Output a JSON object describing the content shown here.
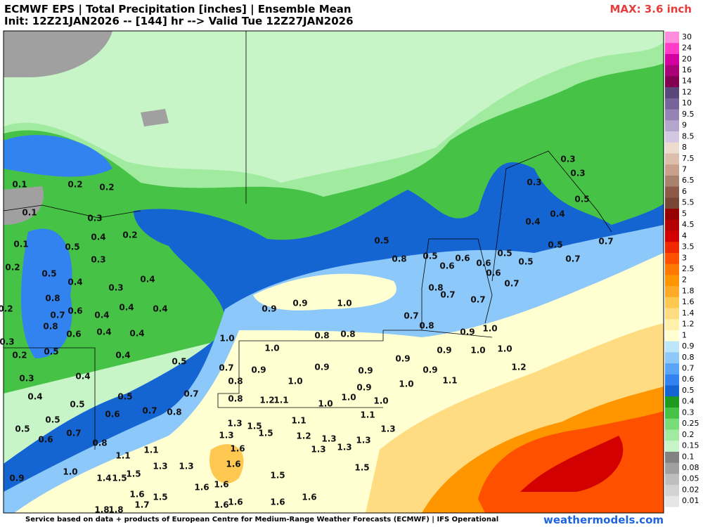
{
  "header": {
    "title": "ECMWF EPS | Total Precipitation [inches] | Ensemble Mean",
    "subtitle": "Init: 12Z21JAN2026 -- [144] hr --> Valid Tue 12Z27JAN2026",
    "max_label": "MAX: 3.6 inch"
  },
  "colorbar": {
    "labels": [
      "0.01",
      "0.02",
      "0.05",
      "0.08",
      "0.1",
      "0.15",
      "0.2",
      "0.25",
      "0.3",
      "0.4",
      "0.5",
      "0.6",
      "0.7",
      "0.8",
      "0.9",
      "1",
      "1.2",
      "1.4",
      "1.6",
      "1.8",
      "2",
      "2.5",
      "3",
      "3.5",
      "4",
      "4.5",
      "5",
      "5.5",
      "6",
      "6.5",
      "7",
      "7.5",
      "8",
      "8.5",
      "9",
      "9.5",
      "10",
      "12",
      "14",
      "16",
      "20",
      "24",
      "30"
    ],
    "colors": [
      "#e6e6e6",
      "#d2d2d2",
      "#bebebe",
      "#a0a0a0",
      "#828282",
      "#c8f5c8",
      "#a0eba0",
      "#78dc78",
      "#46c346",
      "#1e9b1e",
      "#1464d2",
      "#3282f0",
      "#5aa5f5",
      "#8cc8fa",
      "#bee6fa",
      "#ffffd2",
      "#fff0aa",
      "#ffdc82",
      "#ffc850",
      "#ffaa28",
      "#ff9600",
      "#ff7800",
      "#ff5000",
      "#f02800",
      "#d20000",
      "#b40000",
      "#960000",
      "#784634",
      "#8c5a46",
      "#a8826e",
      "#c8a08c",
      "#dcbeaa",
      "#ecdcd0",
      "#d2c8e1",
      "#b4a5cd",
      "#9682b4",
      "#78649b",
      "#5a4678",
      "#820050",
      "#aa0078",
      "#d200a0",
      "#ff3cc8",
      "#ff8cdc"
    ]
  },
  "map": {
    "point_labels": [
      "0.1",
      "0.2",
      "0.2",
      "0.1",
      "0.3",
      "0.1",
      "0.5",
      "0.4",
      "0.2",
      "0.2",
      "0.5",
      "0.3",
      "0.4",
      "0.3",
      "0.4",
      "0.8",
      "0.2",
      "0.7",
      "0.6",
      "0.4",
      "0.4",
      "0.4",
      "0.8",
      "0.6",
      "0.4",
      "0.4",
      "0.3",
      "0.2",
      "0.5",
      "0.4",
      "0.5",
      "0.3",
      "0.4",
      "0.4",
      "0.5",
      "0.5",
      "0.7",
      "0.5",
      "0.6",
      "0.7",
      "0.8",
      "0.5",
      "0.6",
      "0.7",
      "0.8",
      "0.9",
      "1.0",
      "1.1",
      "1.1",
      "1.4",
      "1.5",
      "1.5",
      "1.3",
      "1.3",
      "1.6",
      "1.5",
      "1.7",
      "1.8",
      "1.8",
      "1.6",
      "1.6",
      "1.6",
      "1.6",
      "1.6",
      "1.6",
      "0.5",
      "0.8",
      "0.5",
      "0.6",
      "0.6",
      "0.6",
      "0.5",
      "0.5",
      "0.5",
      "0.7",
      "0.7",
      "0.6",
      "0.7",
      "0.8",
      "0.7",
      "0.7",
      "0.3",
      "0.3",
      "0.3",
      "0.5",
      "0.4",
      "0.4",
      "0.9",
      "0.9",
      "1.0",
      "0.7",
      "0.8",
      "0.9",
      "1.0",
      "0.8",
      "0.8",
      "1.0",
      "1.0",
      "0.9",
      "1.0",
      "1.0",
      "0.9",
      "0.7",
      "0.9",
      "0.9",
      "0.9",
      "0.9",
      "1.2",
      "0.8",
      "1.0",
      "0.9",
      "1.0",
      "1.1",
      "0.8",
      "1.2",
      "1.1",
      "1.0",
      "1.0",
      "1.0",
      "1.1",
      "1.3",
      "1.5",
      "1.1",
      "1.3",
      "1.5",
      "1.2",
      "1.3",
      "1.3",
      "1.3",
      "1.6",
      "1.3",
      "1.3",
      "1.6",
      "1.5",
      "1.5"
    ]
  },
  "footer": {
    "credit": "Service based on data + products of European Centre for Medium-Range Weather Forecasts (ECMWF) | IFS Operational",
    "site": "weathermodels.com"
  }
}
